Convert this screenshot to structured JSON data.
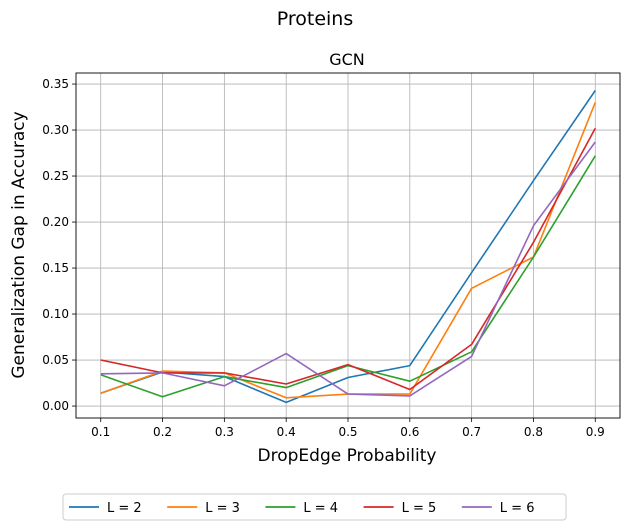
{
  "suptitle": "Proteins",
  "chart_data": {
    "type": "line",
    "title": "GCN",
    "xlabel": "DropEdge Probability",
    "ylabel": "Generalization Gap in Accuracy",
    "x": [
      0.1,
      0.2,
      0.3,
      0.4,
      0.5,
      0.6,
      0.7,
      0.8,
      0.9
    ],
    "xlim": [
      0.06,
      0.94
    ],
    "ylim": [
      -0.013,
      0.362
    ],
    "xticks": [
      "0.1",
      "0.2",
      "0.3",
      "0.4",
      "0.5",
      "0.6",
      "0.7",
      "0.8",
      "0.9"
    ],
    "yticks": [
      "0.00",
      "0.05",
      "0.10",
      "0.15",
      "0.20",
      "0.25",
      "0.30",
      "0.35"
    ],
    "grid": true,
    "legend_position": "bottom-center",
    "series": [
      {
        "name": "L = 2",
        "color": "#1f77b4",
        "values": [
          0.014,
          0.037,
          0.032,
          0.004,
          0.031,
          0.044,
          0.145,
          0.245,
          0.343
        ]
      },
      {
        "name": "L = 3",
        "color": "#ff7f0e",
        "values": [
          0.014,
          0.038,
          0.036,
          0.009,
          0.013,
          0.013,
          0.128,
          0.162,
          0.33
        ]
      },
      {
        "name": "L = 4",
        "color": "#2ca02c",
        "values": [
          0.034,
          0.01,
          0.032,
          0.02,
          0.044,
          0.027,
          0.059,
          0.162,
          0.272
        ]
      },
      {
        "name": "L = 5",
        "color": "#d62728",
        "values": [
          0.05,
          0.036,
          0.036,
          0.024,
          0.045,
          0.018,
          0.067,
          0.178,
          0.302
        ]
      },
      {
        "name": "L = 6",
        "color": "#9467bd",
        "values": [
          0.035,
          0.036,
          0.022,
          0.057,
          0.013,
          0.011,
          0.054,
          0.196,
          0.287
        ]
      }
    ]
  }
}
